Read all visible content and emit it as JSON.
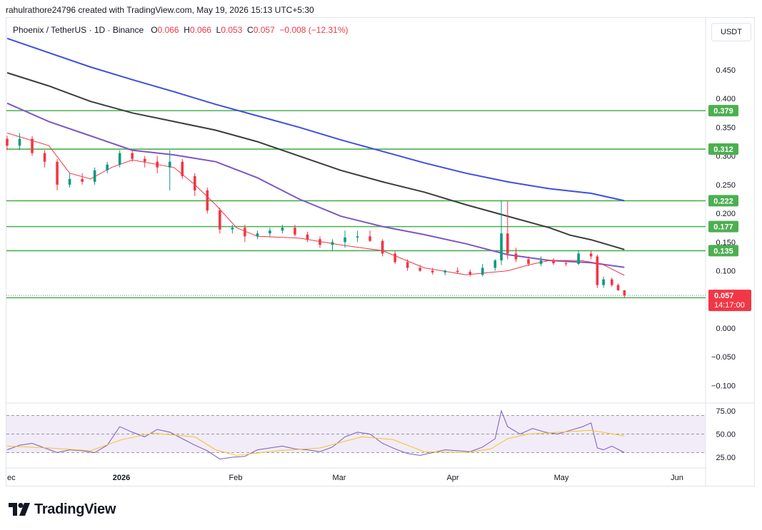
{
  "header": {
    "watermark": "rahulrathore24796 created with TradingView.com, May 19, 2026 15:13 UTC+5:30"
  },
  "legend": {
    "symbol": "Phoenix / TetherUS · 1D · Binance",
    "open_label": "O",
    "open": "0.066",
    "high_label": "H",
    "high": "0.066",
    "low_label": "L",
    "low": "0.053",
    "close_label": "C",
    "close": "0.057",
    "change": "−0.008 (−12.31%)"
  },
  "currency_button": "USDT",
  "logo_text": "TradingView",
  "colors": {
    "up": "#089981",
    "down": "#f23645",
    "level_line": "#4caf50",
    "ma_blue": "#3f4ee0",
    "ma_black": "#3c3c3c",
    "ma_purple": "#7e57c2",
    "ma_red": "#f23645",
    "rsi": "#7e57c2",
    "rsi_ma": "#f7c325",
    "rsi_band": "#ede7f6"
  },
  "chart_data": [
    {
      "type": "line",
      "title": "Phoenix / TetherUS · 1D · Binance",
      "ylim": [
        -0.125,
        0.5
      ],
      "y_ticks": [
        "0.450",
        "0.400",
        "0.350",
        "0.300",
        "0.250",
        "0.200",
        "0.150",
        "0.100",
        "0.050",
        "0.000",
        "−0.050",
        "−0.100"
      ],
      "x_ticks": [
        "ec",
        "2026",
        "Feb",
        "Mar",
        "Apr",
        "May",
        "Jun"
      ],
      "horizontal_levels": [
        {
          "value": 0.379,
          "label": "0.379"
        },
        {
          "value": 0.312,
          "label": "0.312"
        },
        {
          "value": 0.222,
          "label": "0.222"
        },
        {
          "value": 0.177,
          "label": "0.177"
        },
        {
          "value": 0.135,
          "label": "0.135"
        },
        {
          "value": 0.053,
          "label": ""
        }
      ],
      "last_price": {
        "value": 0.057,
        "label": "0.057",
        "countdown": "14:17:00"
      },
      "grid": false,
      "moving_averages": [
        {
          "color": "#3f4ee0",
          "points": [
            [
              0,
              0.505
            ],
            [
              20,
              0.48
            ],
            [
              40,
              0.455
            ],
            [
              60,
              0.433
            ],
            [
              80,
              0.412
            ],
            [
              100,
              0.39
            ],
            [
              120,
              0.37
            ],
            [
              140,
              0.35
            ],
            [
              160,
              0.328
            ],
            [
              180,
              0.308
            ],
            [
              200,
              0.288
            ],
            [
              220,
              0.27
            ],
            [
              240,
              0.255
            ],
            [
              260,
              0.243
            ],
            [
              280,
              0.235
            ],
            [
              296,
              0.222
            ]
          ]
        },
        {
          "color": "#3c3c3c",
          "points": [
            [
              0,
              0.445
            ],
            [
              20,
              0.422
            ],
            [
              40,
              0.395
            ],
            [
              60,
              0.375
            ],
            [
              80,
              0.36
            ],
            [
              100,
              0.345
            ],
            [
              120,
              0.325
            ],
            [
              140,
              0.3
            ],
            [
              160,
              0.275
            ],
            [
              180,
              0.255
            ],
            [
              200,
              0.237
            ],
            [
              220,
              0.215
            ],
            [
              240,
              0.195
            ],
            [
              260,
              0.175
            ],
            [
              270,
              0.162
            ],
            [
              280,
              0.154
            ],
            [
              296,
              0.137
            ]
          ]
        },
        {
          "color": "#7e57c2",
          "points": [
            [
              0,
              0.392
            ],
            [
              20,
              0.36
            ],
            [
              40,
              0.335
            ],
            [
              60,
              0.31
            ],
            [
              80,
              0.302
            ],
            [
              100,
              0.29
            ],
            [
              120,
              0.262
            ],
            [
              140,
              0.225
            ],
            [
              160,
              0.195
            ],
            [
              180,
              0.177
            ],
            [
              200,
              0.163
            ],
            [
              220,
              0.147
            ],
            [
              240,
              0.128
            ],
            [
              260,
              0.118
            ],
            [
              280,
              0.114
            ],
            [
              296,
              0.106
            ]
          ]
        },
        {
          "color": "#f23645",
          "points": [
            [
              0,
              0.34
            ],
            [
              20,
              0.318
            ],
            [
              30,
              0.27
            ],
            [
              40,
              0.26
            ],
            [
              50,
              0.28
            ],
            [
              60,
              0.293
            ],
            [
              80,
              0.28
            ],
            [
              90,
              0.25
            ],
            [
              100,
              0.215
            ],
            [
              110,
              0.175
            ],
            [
              120,
              0.16
            ],
            [
              140,
              0.157
            ],
            [
              160,
              0.145
            ],
            [
              180,
              0.135
            ],
            [
              200,
              0.105
            ],
            [
              220,
              0.093
            ],
            [
              240,
              0.1
            ],
            [
              250,
              0.11
            ],
            [
              260,
              0.118
            ],
            [
              275,
              0.118
            ],
            [
              285,
              0.112
            ],
            [
              296,
              0.092
            ]
          ]
        }
      ],
      "candles": [
        [
          0,
          0.33,
          0.335,
          0.31,
          0.318
        ],
        [
          6,
          0.318,
          0.34,
          0.31,
          0.33
        ],
        [
          12,
          0.33,
          0.335,
          0.3,
          0.305
        ],
        [
          18,
          0.305,
          0.31,
          0.28,
          0.29
        ],
        [
          24,
          0.29,
          0.295,
          0.24,
          0.25
        ],
        [
          30,
          0.25,
          0.27,
          0.245,
          0.26
        ],
        [
          36,
          0.26,
          0.27,
          0.25,
          0.255
        ],
        [
          42,
          0.255,
          0.28,
          0.25,
          0.275
        ],
        [
          48,
          0.275,
          0.29,
          0.27,
          0.285
        ],
        [
          54,
          0.285,
          0.31,
          0.28,
          0.305
        ],
        [
          60,
          0.305,
          0.31,
          0.29,
          0.295
        ],
        [
          66,
          0.295,
          0.3,
          0.28,
          0.29
        ],
        [
          72,
          0.29,
          0.3,
          0.27,
          0.28
        ],
        [
          78,
          0.28,
          0.31,
          0.24,
          0.29
        ],
        [
          84,
          0.29,
          0.295,
          0.26,
          0.265
        ],
        [
          90,
          0.265,
          0.27,
          0.23,
          0.24
        ],
        [
          96,
          0.24,
          0.245,
          0.2,
          0.205
        ],
        [
          102,
          0.205,
          0.21,
          0.165,
          0.172
        ],
        [
          108,
          0.172,
          0.18,
          0.165,
          0.175
        ],
        [
          114,
          0.175,
          0.18,
          0.15,
          0.16
        ],
        [
          120,
          0.16,
          0.17,
          0.155,
          0.165
        ],
        [
          126,
          0.165,
          0.175,
          0.16,
          0.17
        ],
        [
          132,
          0.17,
          0.18,
          0.165,
          0.175
        ],
        [
          138,
          0.175,
          0.18,
          0.16,
          0.163
        ],
        [
          144,
          0.163,
          0.168,
          0.15,
          0.155
        ],
        [
          150,
          0.155,
          0.16,
          0.14,
          0.145
        ],
        [
          156,
          0.145,
          0.155,
          0.135,
          0.15
        ],
        [
          162,
          0.15,
          0.17,
          0.14,
          0.158
        ],
        [
          168,
          0.158,
          0.17,
          0.15,
          0.16
        ],
        [
          174,
          0.16,
          0.17,
          0.15,
          0.152
        ],
        [
          180,
          0.152,
          0.155,
          0.125,
          0.13
        ],
        [
          186,
          0.13,
          0.135,
          0.112,
          0.115
        ],
        [
          192,
          0.115,
          0.12,
          0.1,
          0.105
        ],
        [
          198,
          0.105,
          0.11,
          0.098,
          0.1
        ],
        [
          204,
          0.1,
          0.105,
          0.093,
          0.097
        ],
        [
          210,
          0.097,
          0.102,
          0.092,
          0.1
        ],
        [
          216,
          0.1,
          0.106,
          0.095,
          0.098
        ],
        [
          222,
          0.098,
          0.102,
          0.09,
          0.093
        ],
        [
          228,
          0.093,
          0.112,
          0.09,
          0.105
        ],
        [
          234,
          0.105,
          0.12,
          0.1,
          0.118
        ],
        [
          237,
          0.118,
          0.222,
          0.11,
          0.165
        ],
        [
          240,
          0.165,
          0.222,
          0.12,
          0.13
        ],
        [
          244,
          0.13,
          0.14,
          0.115,
          0.12
        ],
        [
          250,
          0.12,
          0.125,
          0.108,
          0.112
        ],
        [
          256,
          0.112,
          0.125,
          0.108,
          0.118
        ],
        [
          262,
          0.118,
          0.122,
          0.11,
          0.113
        ],
        [
          268,
          0.113,
          0.118,
          0.108,
          0.112
        ],
        [
          274,
          0.112,
          0.135,
          0.11,
          0.13
        ],
        [
          280,
          0.13,
          0.135,
          0.12,
          0.125
        ],
        [
          283,
          0.125,
          0.128,
          0.07,
          0.075
        ],
        [
          286,
          0.075,
          0.09,
          0.07,
          0.085
        ],
        [
          290,
          0.085,
          0.088,
          0.072,
          0.075
        ],
        [
          293,
          0.075,
          0.078,
          0.065,
          0.066
        ],
        [
          296,
          0.066,
          0.066,
          0.053,
          0.057
        ]
      ]
    },
    {
      "type": "line",
      "title": "RSI",
      "ylim": [
        14,
        80
      ],
      "y_ticks": [
        "75.00",
        "50.00",
        "25.00"
      ],
      "band": [
        30,
        70
      ],
      "series": [
        {
          "values": [
            [
              0,
              33
            ],
            [
              6,
              38
            ],
            [
              12,
              40
            ],
            [
              18,
              35
            ],
            [
              24,
              30
            ],
            [
              30,
              33
            ],
            [
              36,
              32
            ],
            [
              42,
              30
            ],
            [
              48,
              38
            ],
            [
              54,
              58
            ],
            [
              60,
              52
            ],
            [
              66,
              47
            ],
            [
              72,
              55
            ],
            [
              78,
              52
            ],
            [
              84,
              45
            ],
            [
              90,
              38
            ],
            [
              96,
              32
            ],
            [
              102,
              23
            ],
            [
              108,
              25
            ],
            [
              114,
              26
            ],
            [
              120,
              33
            ],
            [
              126,
              35
            ],
            [
              132,
              37
            ],
            [
              138,
              34
            ],
            [
              144,
              33
            ],
            [
              150,
              31
            ],
            [
              156,
              36
            ],
            [
              162,
              47
            ],
            [
              168,
              52
            ],
            [
              174,
              50
            ],
            [
              180,
              40
            ],
            [
              186,
              34
            ],
            [
              192,
              29
            ],
            [
              198,
              27
            ],
            [
              204,
              30
            ],
            [
              210,
              33
            ],
            [
              216,
              32
            ],
            [
              222,
              31
            ],
            [
              228,
              36
            ],
            [
              234,
              45
            ],
            [
              237,
              75
            ],
            [
              240,
              58
            ],
            [
              246,
              50
            ],
            [
              252,
              56
            ],
            [
              258,
              52
            ],
            [
              264,
              50
            ],
            [
              270,
              54
            ],
            [
              276,
              58
            ],
            [
              280,
              62
            ],
            [
              283,
              35
            ],
            [
              286,
              33
            ],
            [
              290,
              37
            ],
            [
              296,
              30
            ]
          ]
        },
        {
          "values": [
            [
              0,
              37
            ],
            [
              20,
              35
            ],
            [
              40,
              32
            ],
            [
              55,
              44
            ],
            [
              70,
              51
            ],
            [
              90,
              47
            ],
            [
              100,
              33
            ],
            [
              110,
              27
            ],
            [
              130,
              32
            ],
            [
              150,
              35
            ],
            [
              170,
              47
            ],
            [
              185,
              44
            ],
            [
              200,
              31
            ],
            [
              220,
              30
            ],
            [
              232,
              34
            ],
            [
              240,
              45
            ],
            [
              250,
              50
            ],
            [
              265,
              52
            ],
            [
              280,
              54
            ],
            [
              296,
              48
            ]
          ]
        }
      ],
      "x_ticks": [
        "ec",
        "2026",
        "Feb",
        "Mar",
        "Apr",
        "May",
        "Jun"
      ]
    }
  ]
}
